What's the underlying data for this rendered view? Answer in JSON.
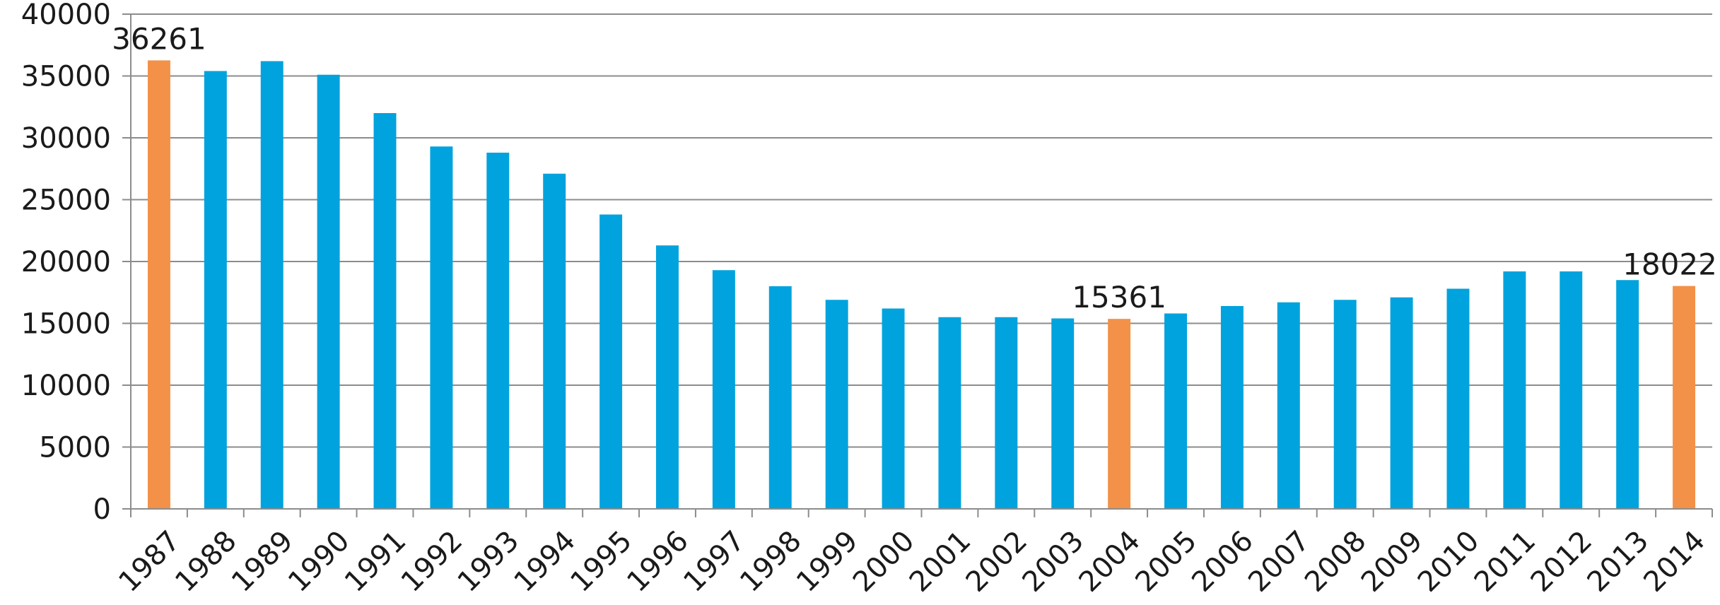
{
  "chart_data": {
    "type": "bar",
    "title": "",
    "xlabel": "",
    "ylabel": "",
    "ylim": [
      0,
      40000
    ],
    "y_ticks": [
      0,
      5000,
      10000,
      15000,
      20000,
      25000,
      30000,
      35000,
      40000
    ],
    "grid": true,
    "legend": "none",
    "categories": [
      "1987",
      "1988",
      "1989",
      "1990",
      "1991",
      "1992",
      "1993",
      "1994",
      "1995",
      "1996",
      "1997",
      "1998",
      "1999",
      "2000",
      "2001",
      "2002",
      "2003",
      "2004",
      "2005",
      "2006",
      "2007",
      "2008",
      "2009",
      "2010",
      "2011",
      "2012",
      "2013",
      "2014"
    ],
    "values": [
      36261,
      35400,
      36200,
      35100,
      32000,
      29300,
      28800,
      27100,
      23800,
      21300,
      19300,
      18000,
      16900,
      16200,
      15500,
      15500,
      15400,
      15361,
      15800,
      16400,
      16700,
      16900,
      17100,
      17800,
      19200,
      19200,
      18500,
      18022
    ],
    "highlighted": [
      "1987",
      "2004",
      "2014"
    ],
    "data_labels": [
      {
        "category": "1987",
        "text": "36261"
      },
      {
        "category": "2004",
        "text": "15361"
      },
      {
        "category": "2014",
        "text": "18022"
      }
    ],
    "colors": {
      "bar": "#00A3DD",
      "highlight": "#F39149",
      "grid": "#8C8C8C",
      "axis": "#8C8C8C"
    }
  }
}
